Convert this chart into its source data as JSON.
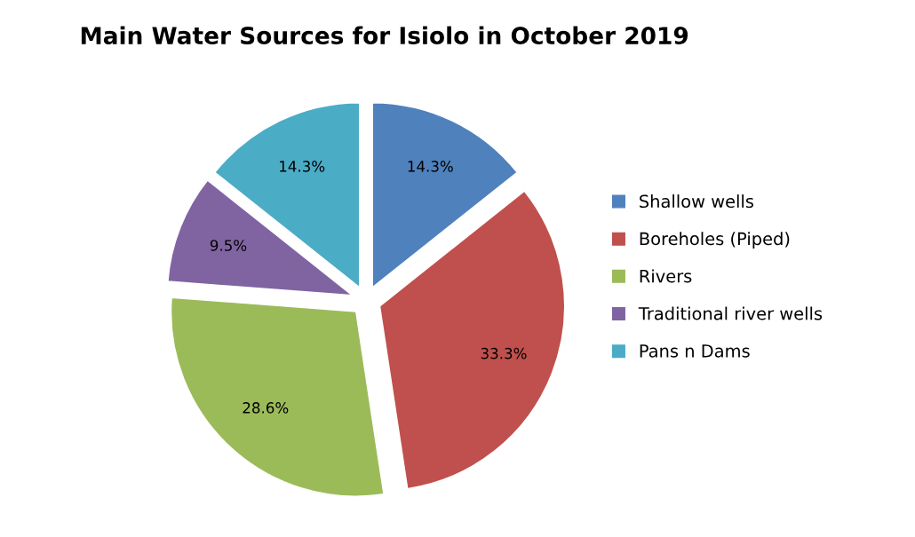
{
  "chart_data": {
    "type": "pie",
    "title": "Main Water Sources for Isiolo in October 2019",
    "categories": [
      "Shallow wells",
      "Boreholes (Piped)",
      "Rivers",
      "Traditional river wells",
      "Pans n Dams"
    ],
    "values": [
      14.3,
      33.3,
      28.6,
      9.5,
      14.3
    ],
    "value_labels": [
      "14.3%",
      "33.3%",
      "28.6%",
      "9.5%",
      "14.3%"
    ],
    "colors": [
      "#4f81bd",
      "#c0504d",
      "#9bbb59",
      "#8064a2",
      "#4bacc6"
    ],
    "legend": "right"
  }
}
